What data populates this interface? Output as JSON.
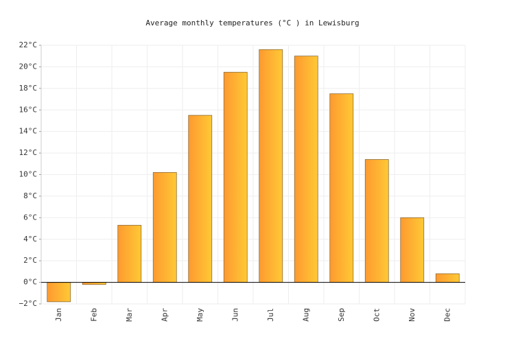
{
  "chart_data": {
    "type": "bar",
    "title": "Average monthly temperatures (°C ) in Lewisburg",
    "categories": [
      "Jan",
      "Feb",
      "Mar",
      "Apr",
      "May",
      "Jun",
      "Jul",
      "Aug",
      "Sep",
      "Oct",
      "Nov",
      "Dec"
    ],
    "values": [
      -1.8,
      -0.2,
      5.3,
      10.2,
      15.5,
      19.5,
      21.6,
      21.0,
      17.5,
      11.4,
      6.0,
      0.8
    ],
    "color": [
      "#fd9a30",
      "#ffc935"
    ],
    "ylim": [
      -2,
      22
    ],
    "yticks": [
      {
        "value": -2,
        "label": "−2°C"
      },
      {
        "value": 0,
        "label": "0°C"
      },
      {
        "value": 2,
        "label": "2°C"
      },
      {
        "value": 4,
        "label": "4°C"
      },
      {
        "value": 6,
        "label": "6°C"
      },
      {
        "value": 8,
        "label": "8°C"
      },
      {
        "value": 10,
        "label": "10°C"
      },
      {
        "value": 12,
        "label": "12°C"
      },
      {
        "value": 14,
        "label": "14°C"
      },
      {
        "value": 16,
        "label": "16°C"
      },
      {
        "value": 18,
        "label": "18°C"
      },
      {
        "value": 20,
        "label": "20°C"
      },
      {
        "value": 22,
        "label": "22°C"
      }
    ],
    "grid": true
  }
}
